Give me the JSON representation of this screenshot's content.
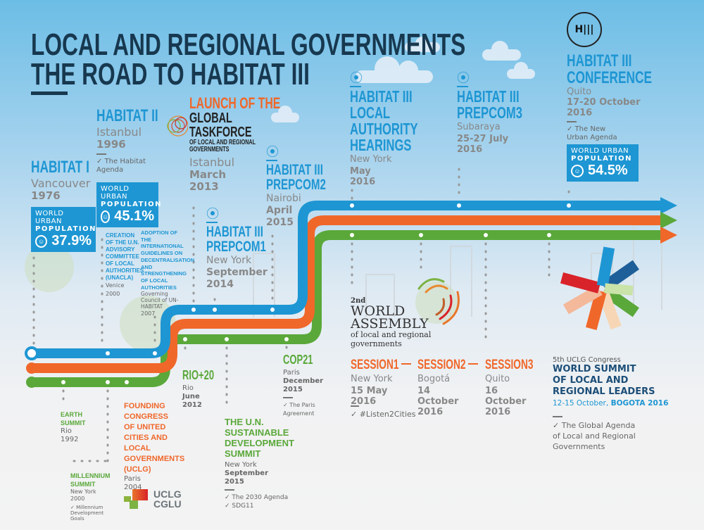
{
  "title": {
    "line1": "LOCAL AND REGIONAL GOVERNMENTS",
    "line2": "THE ROAD TO HABITAT III"
  },
  "colors": {
    "blue": "#1e96d3",
    "orange": "#f0672a",
    "green": "#5aa83a",
    "dark": "#17384f"
  },
  "habitat1": {
    "title": "HABITAT I",
    "city": "Vancouver",
    "year": "1976",
    "pop_l1": "WORLD URBAN",
    "pop_l2": "POPULATION",
    "pop_val": "37.9%"
  },
  "habitat2": {
    "title": "HABITAT II",
    "city": "Istanbul",
    "year": "1996",
    "outcome": "The Habitat Agenda",
    "pop_l1": "WORLD URBAN",
    "pop_l2": "POPULATION",
    "pop_val": "45.1%"
  },
  "unacla": {
    "title": "CREATION OF THE U.N. ADVISORY COMMITTEE OF LOCAL AUTHORITIES (UNACLA)",
    "city": "Venice",
    "year": "2000"
  },
  "guidelines": {
    "title": "ADOPTION OF THE INTERNATIONAL GUIDELINES ON DECENTRALISATION AND STRENGTHENING OF LOCAL AUTHORITIES",
    "sub": "Governing Council of UN-HABITAT",
    "year": "2007"
  },
  "gtf": {
    "l1": "LAUNCH OF THE",
    "l2": "GLOBAL",
    "l3": "TASKFORCE",
    "l4": "OF LOCAL AND REGIONAL GOVERNMENTS",
    "city": "Istanbul",
    "date1": "March",
    "date2": "2013"
  },
  "prep1": {
    "t1": "HABITAT III",
    "t2": "PREPCOM1",
    "city": "New York",
    "date1": "September",
    "date2": "2014"
  },
  "prep2": {
    "t1": "HABITAT III",
    "t2": "PREPCOM2",
    "city": "Nairobi",
    "date1": "April",
    "date2": "2015"
  },
  "hearings": {
    "t1": "HABITAT III",
    "t2": "LOCAL",
    "t3": "AUTHORITY",
    "t4": "HEARINGS",
    "city": "New York",
    "date1": "May",
    "date2": "2016"
  },
  "prep3": {
    "t1": "HABITAT III",
    "t2": "PREPCOM3",
    "city": "Subaraya",
    "date1": "25-27 July",
    "date2": "2016"
  },
  "habitat3": {
    "logo": "H III HABITAT III",
    "t1": "HABITAT III",
    "t2": "CONFERENCE",
    "city": "Quito",
    "date1": "17-20 October",
    "date2": "2016",
    "outcome": "The New Urban Agenda",
    "pop_l1": "WORLD URBAN",
    "pop_l2": "POPULATION",
    "pop_val": "54.5%"
  },
  "earth": {
    "title": "EARTH SUMMIT",
    "city": "Rio",
    "year": "1992"
  },
  "millennium": {
    "title": "MILLENNIUM SUMMIT",
    "city": "New York",
    "year": "2000",
    "outcome": "Millennium Development Goals"
  },
  "uclg_found": {
    "title": "FOUNDING CONGRESS OF UNITED CITIES AND LOCAL GOVERNMENTS (UCLG)",
    "city": "Paris",
    "year": "2004",
    "logo1": "UCLG",
    "logo2": "CGLU"
  },
  "rio20": {
    "title": "RIO+20",
    "city": "Rio",
    "date1": "June",
    "date2": "2012"
  },
  "sdsummit": {
    "title": "THE U.N. SUSTAINABLE DEVELOPMENT SUMMIT",
    "city": "New York",
    "date1": "September",
    "date2": "2015",
    "outcome1": "The 2030 Agenda",
    "outcome2": "SDG11"
  },
  "cop21": {
    "title": "COP21",
    "city": "Paris",
    "date1": "December",
    "date2": "2015",
    "outcome": "The Paris Agreement"
  },
  "assembly": {
    "l1": "2nd",
    "l2": "WORLD",
    "l3": "ASSEMBLY",
    "l4": "of local and regional governments",
    "hashtag": "#Listen2Cities",
    "sessions": [
      {
        "name": "SESSION1",
        "city": "New York",
        "date": "15 May 2016"
      },
      {
        "name": "SESSION2",
        "city": "Bogotá",
        "date": "14 October 2016"
      },
      {
        "name": "SESSION3",
        "city": "Quito",
        "date": "16 October 2016"
      }
    ]
  },
  "summit": {
    "congress": "5th UCLG Congress",
    "t1": "WORLD SUMMIT",
    "t2": "OF LOCAL AND",
    "t3": "REGIONAL LEADERS",
    "date": "12-15 October,",
    "place": "BOGOTA 2016",
    "outcome": "The Global Agenda of Local and Regional Governments"
  }
}
